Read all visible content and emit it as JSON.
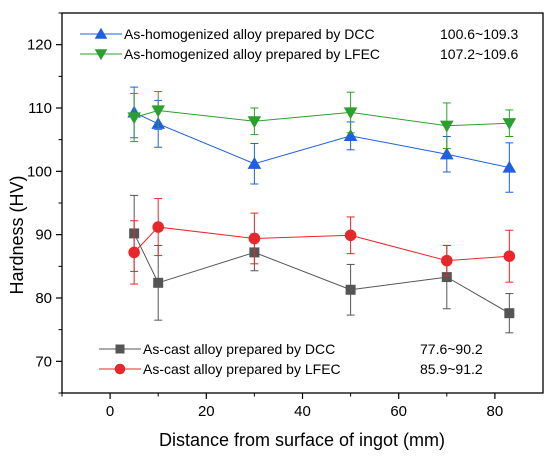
{
  "chart_data": {
    "type": "scatter",
    "xlabel": "Distance from surface of ingot (mm)",
    "ylabel": "Hardness (HV)",
    "xlim": [
      -10,
      90
    ],
    "ylim": [
      65,
      125
    ],
    "xticks": [
      0,
      20,
      40,
      60,
      80
    ],
    "yticks": [
      70,
      80,
      90,
      100,
      110,
      120
    ],
    "grid": false,
    "series": [
      {
        "name": "As-homogenized alloy prepared by DCC",
        "range": "100.6~109.3",
        "color": "#1f5fe0",
        "marker": "triangle-up",
        "x": [
          5,
          10,
          30,
          50,
          70,
          83
        ],
        "y": [
          109.3,
          107.5,
          101.2,
          105.6,
          102.7,
          100.6
        ],
        "err": [
          4.0,
          3.7,
          3.2,
          2.2,
          2.8,
          3.9
        ]
      },
      {
        "name": "As-homogenized alloy prepared by LFEC",
        "range": "107.2~109.6",
        "color": "#2ca02c",
        "marker": "triangle-down",
        "x": [
          5,
          10,
          30,
          50,
          70,
          83
        ],
        "y": [
          108.5,
          109.6,
          107.9,
          109.3,
          107.2,
          107.6
        ],
        "err": [
          3.8,
          3.0,
          2.1,
          3.2,
          3.6,
          2.1
        ]
      },
      {
        "name": "As-cast alloy prepared by DCC",
        "range": "77.6~90.2",
        "color": "#555555",
        "marker": "square",
        "x": [
          5,
          10,
          30,
          50,
          70,
          83
        ],
        "y": [
          90.2,
          82.4,
          87.2,
          81.3,
          83.3,
          77.6
        ],
        "err": [
          6.0,
          5.9,
          2.9,
          4.0,
          5.0,
          3.1
        ]
      },
      {
        "name": "As-cast alloy prepared by LFEC",
        "range": "85.9~91.2",
        "color": "#e8262b",
        "marker": "circle",
        "x": [
          5,
          10,
          30,
          50,
          70,
          83
        ],
        "y": [
          87.2,
          91.2,
          89.4,
          89.9,
          85.9,
          86.6
        ],
        "err": [
          5.0,
          4.5,
          4.0,
          2.9,
          2.4,
          4.1
        ]
      }
    ],
    "legend_top": [
      "0",
      "1"
    ],
    "legend_bottom": [
      "2",
      "3"
    ]
  }
}
